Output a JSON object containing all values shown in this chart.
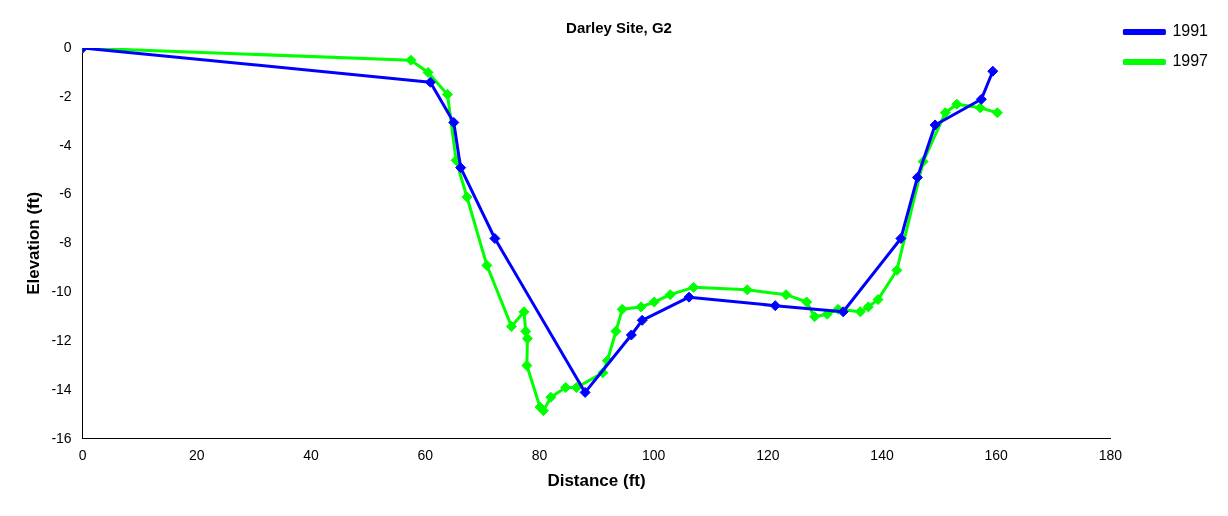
{
  "chart_data": {
    "type": "line",
    "title": "Darley Site, G2",
    "xlabel": "Distance (ft)",
    "ylabel": "Elevation (ft)",
    "xlim": [
      0,
      180
    ],
    "xticks": [
      0,
      20,
      40,
      60,
      80,
      100,
      120,
      140,
      160,
      180
    ],
    "ylim": [
      -16,
      0
    ],
    "yticks": [
      -16,
      -14,
      -12,
      -10,
      -8,
      -6,
      -4,
      -2,
      0
    ],
    "grid": false,
    "legend": "top right",
    "marker": "diamond",
    "line_style": "solid",
    "series": [
      {
        "name": "1991",
        "color": "#0000ff",
        "x": [
          0,
          60.9,
          65.0,
          66.2,
          72.2,
          88.0,
          96.1,
          98.0,
          106.2,
          121.3,
          133.2,
          143.3,
          146.2,
          149.3,
          157.4,
          159.4
        ],
        "values": [
          0,
          -1.4,
          -3.05,
          -4.9,
          -7.8,
          -14.1,
          -11.75,
          -11.15,
          -10.2,
          -10.55,
          -10.8,
          -7.8,
          -5.3,
          -3.15,
          -2.1,
          -0.95
        ]
      },
      {
        "name": "1997",
        "color": "#00ff00",
        "x": [
          0,
          57.5,
          60.5,
          63.9,
          65.4,
          67.3,
          70.8,
          75.1,
          77.3,
          77.6,
          77.9,
          77.8,
          80.1,
          80.7,
          82.0,
          84.6,
          86.5,
          91.1,
          91.9,
          93.4,
          94.5,
          97.8,
          100.1,
          102.9,
          107.0,
          116.4,
          123.2,
          126.8,
          128.2,
          130.4,
          132.3,
          136.2,
          137.6,
          139.3,
          142.6,
          147.2,
          151.1,
          153.1,
          157.2,
          160.2
        ],
        "values": [
          0,
          -0.5,
          -1.0,
          -1.9,
          -4.6,
          -6.1,
          -8.9,
          -11.4,
          -10.8,
          -11.6,
          -11.9,
          -13.0,
          -14.7,
          -14.85,
          -14.3,
          -13.9,
          -13.9,
          -13.3,
          -12.8,
          -11.6,
          -10.7,
          -10.6,
          -10.4,
          -10.1,
          -9.8,
          -9.9,
          -10.1,
          -10.4,
          -11.0,
          -10.9,
          -10.7,
          -10.8,
          -10.6,
          -10.3,
          -9.1,
          -4.65,
          -2.65,
          -2.3,
          -2.45,
          -2.65
        ]
      }
    ]
  }
}
